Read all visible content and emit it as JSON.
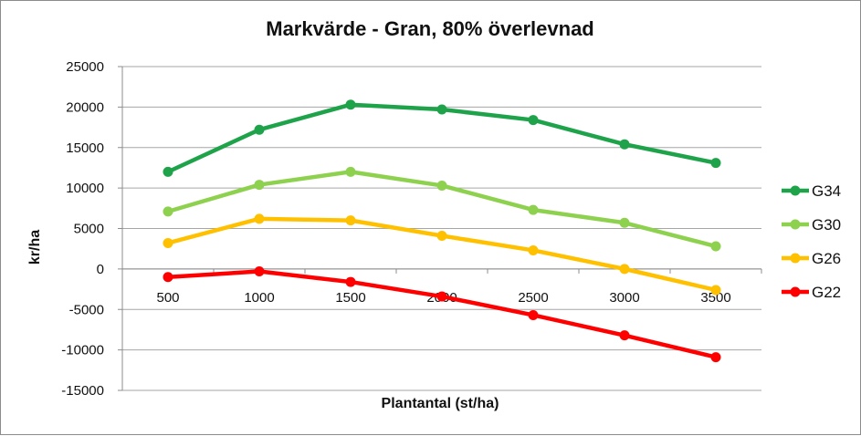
{
  "chart_data": {
    "type": "line",
    "title": "Markvärde - Gran, 80% överlevnad",
    "xlabel": "Plantantal  (st/ha)",
    "ylabel": "kr/ha",
    "x": [
      500,
      1000,
      1500,
      2000,
      2500,
      3000,
      3500
    ],
    "ylim": [
      -15000,
      25000
    ],
    "yticks": [
      -15000,
      -10000,
      -5000,
      0,
      5000,
      10000,
      15000,
      20000,
      25000
    ],
    "ytick_labels": [
      "-15000",
      "-10000",
      "-5000",
      "0",
      "5000",
      "10000",
      "15000",
      "20000",
      "25000"
    ],
    "xtick_labels": [
      "500",
      "1000",
      "1500",
      "2000",
      "2500",
      "3000",
      "3500"
    ],
    "grid": "horizontal",
    "legend_position": "right",
    "series": [
      {
        "name": "G34",
        "color": "#1fa34a",
        "values": [
          12000,
          17200,
          20300,
          19700,
          18400,
          15400,
          13100
        ]
      },
      {
        "name": "G30",
        "color": "#8dd14f",
        "values": [
          7100,
          10400,
          12000,
          10300,
          7300,
          5700,
          2800
        ]
      },
      {
        "name": "G26",
        "color": "#ffc000",
        "values": [
          3200,
          6200,
          6000,
          4100,
          2300,
          0,
          -2600
        ]
      },
      {
        "name": "G22",
        "color": "#ff0000",
        "values": [
          -1000,
          -300,
          -1600,
          -3400,
          -5700,
          -8200,
          -10900
        ]
      }
    ]
  }
}
